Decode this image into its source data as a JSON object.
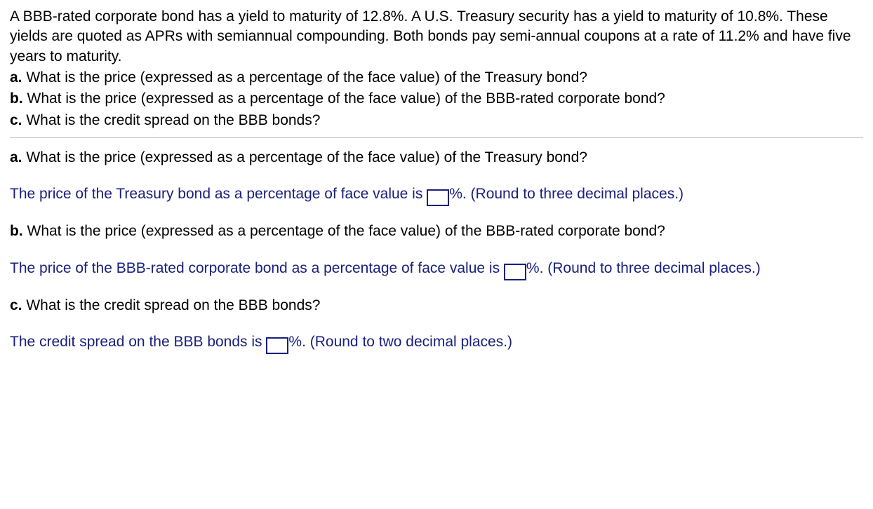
{
  "problem": {
    "intro": "A BBB-rated corporate bond has a yield to maturity of 12.8%. A U.S. Treasury security has a yield to maturity of 10.8%. These yields are quoted as APRs with semiannual compounding. Both bonds pay semi-annual coupons at a rate of 11.2% and have five years to maturity.",
    "parts": {
      "a": {
        "label": "a.",
        "text": " What is the price (expressed as a percentage of the face value) of the Treasury bond?"
      },
      "b": {
        "label": "b.",
        "text": " What is the price (expressed as a percentage of the face value) of the BBB-rated corporate bond?"
      },
      "c": {
        "label": "c.",
        "text": " What is the credit spread on the BBB bonds?"
      }
    }
  },
  "answers": {
    "a": {
      "question_label": "a.",
      "question_text": " What is the price (expressed as a percentage of the face value) of the Treasury bond?",
      "lead": "The price of the Treasury bond as a percentage of face value is ",
      "unit": "%. ",
      "hint": " (Round to three decimal places.)"
    },
    "b": {
      "question_label": "b.",
      "question_text": " What is the price (expressed as a percentage of the face value) of the BBB-rated corporate bond?",
      "lead": "The price of the BBB-rated corporate bond as a percentage of face value is ",
      "unit": "%. ",
      "hint": " (Round to three decimal places.)"
    },
    "c": {
      "question_label": "c.",
      "question_text": " What is the credit spread on the BBB bonds?",
      "lead": "The credit spread on the BBB bonds is ",
      "unit": "%. ",
      "hint": "(Round to two decimal places.)"
    }
  },
  "style": {
    "text_color": "#000000",
    "blue_color": "#19207d",
    "divider_color": "#bfbfbf",
    "background": "#ffffff",
    "font_family": "Arial",
    "base_font_size_pt": 16
  }
}
